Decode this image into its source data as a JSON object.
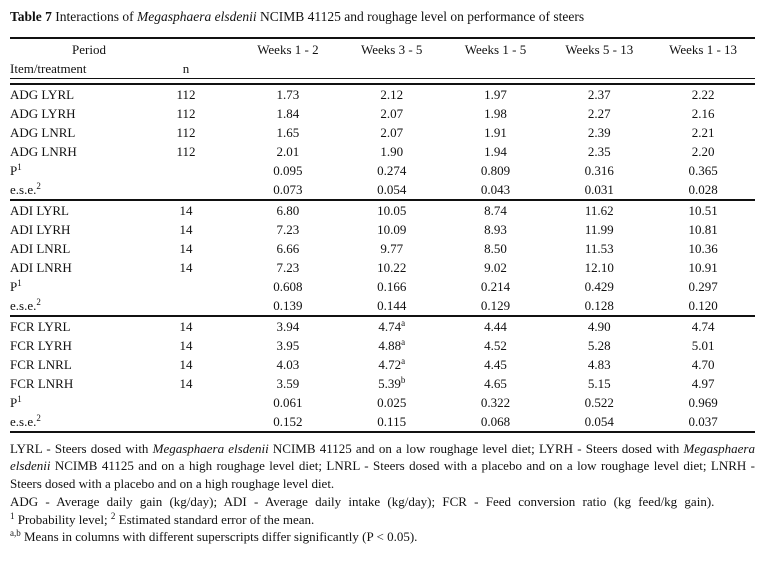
{
  "page": {
    "background": "#ffffff",
    "text_color": "#111111",
    "rule_color": "#111111"
  },
  "title": {
    "parts": [
      {
        "t": "Table 7",
        "b": true
      },
      {
        "t": " Interactions of "
      },
      {
        "t": "Megasphaera elsdenii",
        "i": true
      },
      {
        "t": " NCIMB 41125 and roughage level on performance of steers"
      }
    ]
  },
  "table": {
    "header": {
      "period_label": "Period",
      "item_label": "Item/treatment",
      "n_label": "n",
      "week_columns": [
        "Weeks 1 - 2",
        "Weeks 3 - 5",
        "Weeks 1 - 5",
        "Weeks 5 - 13",
        "Weeks 1 - 13"
      ]
    },
    "blocks": [
      {
        "name": "ADG",
        "rows": [
          {
            "label": "ADG LYRL",
            "n": "112",
            "values": [
              "1.73",
              "2.12",
              "1.97",
              "2.37",
              "2.22"
            ]
          },
          {
            "label": "ADG LYRH",
            "n": "112",
            "values": [
              "1.84",
              "2.07",
              "1.98",
              "2.27",
              "2.16"
            ]
          },
          {
            "label": "ADG LNRL",
            "n": "112",
            "values": [
              "1.65",
              "2.07",
              "1.91",
              "2.39",
              "2.21"
            ]
          },
          {
            "label": "ADG LNRH",
            "n": "112",
            "values": [
              "2.01",
              "1.90",
              "1.94",
              "2.35",
              "2.20"
            ]
          },
          {
            "label": "P",
            "label_sup": "1",
            "n": "",
            "values": [
              "0.095",
              "0.274",
              "0.809",
              "0.316",
              "0.365"
            ]
          },
          {
            "label": "e.s.e.",
            "label_sup": "2",
            "n": "",
            "values": [
              "0.073",
              "0.054",
              "0.043",
              "0.031",
              "0.028"
            ]
          }
        ]
      },
      {
        "name": "ADI",
        "rows": [
          {
            "label": "ADI LYRL",
            "n": "14",
            "values": [
              "6.80",
              "10.05",
              "8.74",
              "11.62",
              "10.51"
            ]
          },
          {
            "label": "ADI LYRH",
            "n": "14",
            "values": [
              "7.23",
              "10.09",
              "8.93",
              "11.99",
              "10.81"
            ]
          },
          {
            "label": "ADI LNRL",
            "n": "14",
            "values": [
              "6.66",
              "9.77",
              "8.50",
              "11.53",
              "10.36"
            ]
          },
          {
            "label": "ADI LNRH",
            "n": "14",
            "values": [
              "7.23",
              "10.22",
              "9.02",
              "12.10",
              "10.91"
            ]
          },
          {
            "label": "P",
            "label_sup": "1",
            "n": "",
            "values": [
              "0.608",
              "0.166",
              "0.214",
              "0.429",
              "0.297"
            ]
          },
          {
            "label": "e.s.e.",
            "label_sup": "2",
            "n": "",
            "values": [
              "0.139",
              "0.144",
              "0.129",
              "0.128",
              "0.120"
            ]
          }
        ]
      },
      {
        "name": "FCR",
        "rows": [
          {
            "label": "FCR LYRL",
            "n": "14",
            "values": [
              "3.94",
              {
                "v": "4.74",
                "sup": "a"
              },
              "4.44",
              "4.90",
              "4.74"
            ]
          },
          {
            "label": "FCR LYRH",
            "n": "14",
            "values": [
              "3.95",
              {
                "v": "4.88",
                "sup": "a"
              },
              "4.52",
              "5.28",
              "5.01"
            ]
          },
          {
            "label": "FCR LNRL",
            "n": "14",
            "values": [
              "4.03",
              {
                "v": "4.72",
                "sup": "a"
              },
              "4.45",
              "4.83",
              "4.70"
            ]
          },
          {
            "label": "FCR LNRH",
            "n": "14",
            "values": [
              "3.59",
              {
                "v": "5.39",
                "sup": "b"
              },
              "4.65",
              "5.15",
              "4.97"
            ]
          },
          {
            "label": "P",
            "label_sup": "1",
            "n": "",
            "values": [
              "0.061",
              "0.025",
              "0.322",
              "0.522",
              "0.969"
            ]
          },
          {
            "label": "e.s.e.",
            "label_sup": "2",
            "n": "",
            "values": [
              "0.152",
              "0.115",
              "0.068",
              "0.054",
              "0.037"
            ]
          }
        ]
      }
    ]
  },
  "footnotes": [
    {
      "justify": true,
      "spread": false,
      "parts": [
        {
          "t": "LYRL - Steers dosed with "
        },
        {
          "t": "Megasphaera elsdenii",
          "i": true
        },
        {
          "t": " NCIMB 41125 and on a low roughage level diet; LYRH - Steers dosed with "
        },
        {
          "t": "Megasphaera elsdenii",
          "i": true
        },
        {
          "t": " NCIMB 41125 and on a high roughage level diet; LNRL - Steers dosed with a placebo and on a low roughage level diet; LNRH - Steers dosed with a placebo and on a high roughage level diet."
        }
      ]
    },
    {
      "justify": true,
      "spread": true,
      "parts": [
        {
          "t": "ADG - Average daily gain (kg/day);  ADI - Average daily intake (kg/day); FCR - Feed conversion ratio (kg feed/kg gain)."
        }
      ]
    },
    {
      "justify": false,
      "spread": false,
      "parts": [
        {
          "t": "1",
          "sup": true
        },
        {
          "t": " Probability level; "
        },
        {
          "t": "2",
          "sup": true
        },
        {
          "t": " Estimated standard error of the mean."
        }
      ]
    },
    {
      "justify": false,
      "spread": false,
      "parts": [
        {
          "t": "a,b",
          "sup": true
        },
        {
          "t": " Means in columns with different superscripts differ significantly (P < 0.05)."
        }
      ]
    }
  ]
}
